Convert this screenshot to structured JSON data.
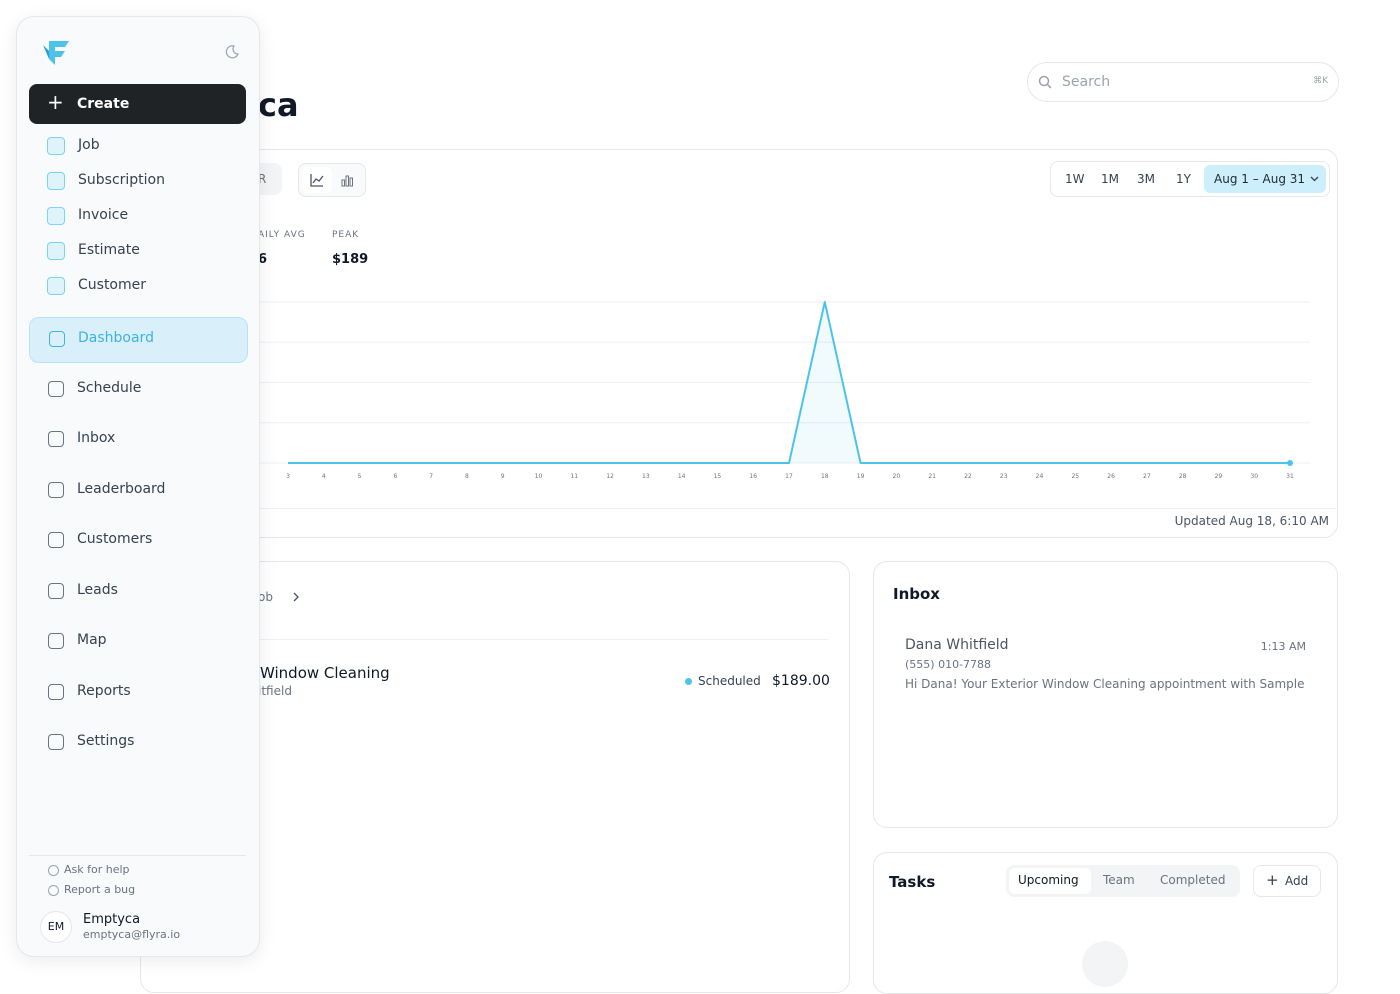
{
  "sidebar": {
    "create": "Create",
    "quick_create": [
      "Job",
      "Subscription",
      "Invoice",
      "Estimate",
      "Customer"
    ],
    "nav": [
      "Dashboard",
      "Schedule",
      "Inbox",
      "Leaderboard",
      "Customers",
      "Leads",
      "Map",
      "Reports",
      "Settings"
    ],
    "footer_links": [
      "Ask for help",
      "Report a bug"
    ],
    "user": {
      "initials": "EM",
      "name": "Emptyca",
      "email": "emptyca@flyra.io"
    }
  },
  "header": {
    "title": "ca",
    "search_placeholder": "Search",
    "shortcut": "⌘K"
  },
  "chart_card": {
    "tab": "R",
    "ranges": [
      "1W",
      "1M",
      "3M",
      "1Y"
    ],
    "date_range": "Aug 1 – Aug 31",
    "stats": [
      {
        "label": "AILY AVG",
        "value": "6"
      },
      {
        "label": "PEAK",
        "value": "$189"
      }
    ],
    "updated": "Updated Aug 18, 6:10 AM"
  },
  "chart_data": {
    "type": "line",
    "x": [
      3,
      4,
      5,
      6,
      7,
      8,
      9,
      10,
      11,
      12,
      13,
      14,
      15,
      16,
      17,
      18,
      19,
      20,
      21,
      22,
      23,
      24,
      25,
      26,
      27,
      28,
      29,
      30,
      31
    ],
    "values": [
      0,
      0,
      0,
      0,
      0,
      0,
      0,
      0,
      0,
      0,
      0,
      0,
      0,
      0,
      0,
      189,
      0,
      0,
      0,
      0,
      0,
      0,
      0,
      0,
      0,
      0,
      0,
      0,
      0
    ],
    "color": "#4cc3ea",
    "xlim": [
      3,
      31
    ],
    "ylim": [
      0,
      189
    ]
  },
  "jobs_card": {
    "tab": "ob",
    "job": {
      "title": "Window Cleaning",
      "customer": "itfield",
      "status": "Scheduled",
      "amount": "$189.00"
    }
  },
  "inbox": {
    "title": "Inbox",
    "message": {
      "name": "Dana Whitfield",
      "time": "1:13 AM",
      "phone": "(555) 010-7788",
      "preview": "Hi Dana! Your Exterior Window Cleaning appointment with Sample Sh"
    }
  },
  "tasks": {
    "title": "Tasks",
    "tabs": [
      "Upcoming",
      "Team",
      "Completed"
    ],
    "add": "Add"
  }
}
